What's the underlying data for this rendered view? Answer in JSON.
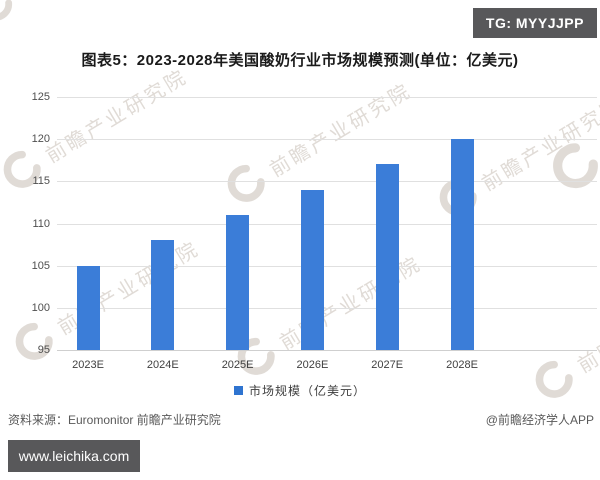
{
  "badge_top_right": {
    "label": "TG: MYYJJPP"
  },
  "title": "图表5：2023-2028年美国酸奶行业市场规模预测(单位：亿美元)",
  "chart_data": {
    "type": "bar",
    "title": "2023-2028年美国酸奶行业市场规模预测",
    "unit": "亿美元",
    "categories": [
      "2023E",
      "2024E",
      "2025E",
      "2026E",
      "2027E",
      "2028E"
    ],
    "values": [
      105,
      108,
      111,
      114,
      117,
      120
    ],
    "series_name": "市场规模（亿美元）",
    "xlabel": "",
    "ylabel": "",
    "ylim": [
      95,
      125
    ],
    "yticks": [
      95,
      100,
      105,
      110,
      115,
      120,
      125
    ],
    "grid": true,
    "legend_position": "bottom",
    "bar_color": "#3b7dd8"
  },
  "legend": {
    "label": "市场规模（亿美元）",
    "swatch_color": "#2f74d0"
  },
  "footer": {
    "source": "资料来源：Euromonitor 前瞻产业研究院",
    "credit": "@前瞻经济学人APP"
  },
  "badge_bottom_left": {
    "label": "www.leichika.com"
  },
  "watermark": {
    "text": "前瞻产业研究院",
    "logo": "crescent-logo"
  },
  "colors": {
    "bar": "#3b7dd8",
    "grid": "#e0e0e0",
    "badge_bg": "#58585a",
    "watermark": "#c2b8ae",
    "text_secondary": "#595959"
  }
}
